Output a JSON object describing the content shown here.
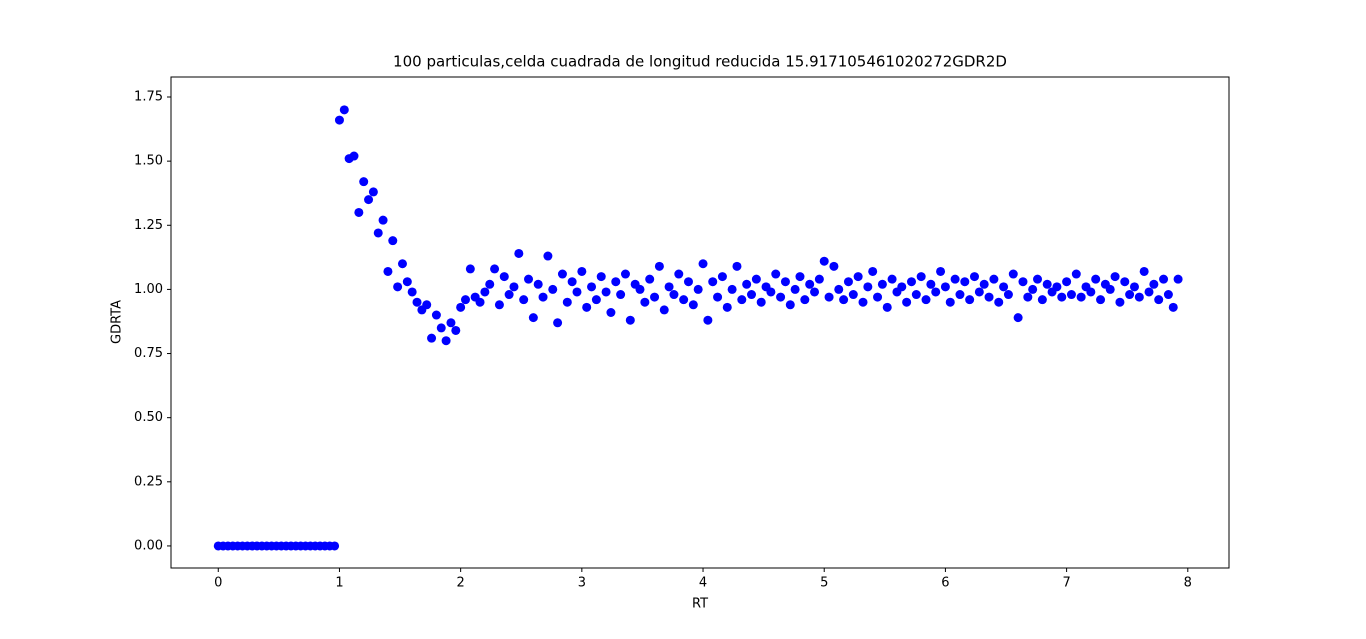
{
  "chart_data": {
    "type": "scatter",
    "title": "100 particulas,celda cuadrada de longitud reducida 15.917105461020272GDR2D",
    "xlabel": "RT",
    "ylabel": "GDRTA",
    "x": [
      0,
      0.04,
      0.08,
      0.12,
      0.16,
      0.2,
      0.24,
      0.28,
      0.32,
      0.36,
      0.4,
      0.44,
      0.48,
      0.52,
      0.56,
      0.6,
      0.64,
      0.68,
      0.72,
      0.76,
      0.8,
      0.84,
      0.88,
      0.92,
      0.96,
      1,
      1.04,
      1.08,
      1.12,
      1.16,
      1.2,
      1.24,
      1.28,
      1.32,
      1.36,
      1.4,
      1.44,
      1.48,
      1.52,
      1.56,
      1.6,
      1.64,
      1.68,
      1.72,
      1.76,
      1.8,
      1.84,
      1.88,
      1.92,
      1.96,
      2,
      2.04,
      2.08,
      2.12,
      2.16,
      2.2,
      2.24,
      2.28,
      2.32,
      2.36,
      2.4,
      2.44,
      2.48,
      2.52,
      2.56,
      2.6,
      2.64,
      2.68,
      2.72,
      2.76,
      2.8,
      2.84,
      2.88,
      2.92,
      2.96,
      3,
      3.04,
      3.08,
      3.12,
      3.16,
      3.2,
      3.24,
      3.28,
      3.32,
      3.36,
      3.4,
      3.44,
      3.48,
      3.52,
      3.56,
      3.6,
      3.64,
      3.68,
      3.72,
      3.76,
      3.8,
      3.84,
      3.88,
      3.92,
      3.96,
      4,
      4.04,
      4.08,
      4.12,
      4.16,
      4.2,
      4.24,
      4.28,
      4.32,
      4.36,
      4.4,
      4.44,
      4.48,
      4.52,
      4.56,
      4.6,
      4.64,
      4.68,
      4.72,
      4.76,
      4.8,
      4.84,
      4.88,
      4.92,
      4.96,
      5,
      5.04,
      5.08,
      5.12,
      5.16,
      5.2,
      5.24,
      5.28,
      5.32,
      5.36,
      5.4,
      5.44,
      5.48,
      5.52,
      5.56,
      5.6,
      5.64,
      5.68,
      5.72,
      5.76,
      5.8,
      5.84,
      5.88,
      5.92,
      5.96,
      6,
      6.04,
      6.08,
      6.12,
      6.16,
      6.2,
      6.24,
      6.28,
      6.32,
      6.36,
      6.4,
      6.44,
      6.48,
      6.52,
      6.56,
      6.6,
      6.64,
      6.68,
      6.72,
      6.76,
      6.8,
      6.84,
      6.88,
      6.92,
      6.96,
      7,
      7.04,
      7.08,
      7.12,
      7.16,
      7.2,
      7.24,
      7.28,
      7.32,
      7.36,
      7.4,
      7.44,
      7.48,
      7.52,
      7.56,
      7.6,
      7.64,
      7.68,
      7.72,
      7.76,
      7.8,
      7.84,
      7.88,
      7.92
    ],
    "values": [
      0,
      0,
      0,
      0,
      0,
      0,
      0,
      0,
      0,
      0,
      0,
      0,
      0,
      0,
      0,
      0,
      0,
      0,
      0,
      0,
      0,
      0,
      0,
      0,
      0,
      1.66,
      1.7,
      1.51,
      1.52,
      1.3,
      1.42,
      1.35,
      1.38,
      1.22,
      1.27,
      1.07,
      1.19,
      1.01,
      1.1,
      1.03,
      0.99,
      0.95,
      0.92,
      0.94,
      0.81,
      0.9,
      0.85,
      0.8,
      0.87,
      0.84,
      0.93,
      0.96,
      1.08,
      0.97,
      0.95,
      0.99,
      1.02,
      1.08,
      0.94,
      1.05,
      0.98,
      1.01,
      1.14,
      0.96,
      1.04,
      0.89,
      1.02,
      0.97,
      1.13,
      1.0,
      0.87,
      1.06,
      0.95,
      1.03,
      0.99,
      1.07,
      0.93,
      1.01,
      0.96,
      1.05,
      0.99,
      0.91,
      1.03,
      0.98,
      1.06,
      0.88,
      1.02,
      1.0,
      0.95,
      1.04,
      0.97,
      1.09,
      0.92,
      1.01,
      0.98,
      1.06,
      0.96,
      1.03,
      0.94,
      1.0,
      1.1,
      0.88,
      1.03,
      0.97,
      1.05,
      0.93,
      1.0,
      1.09,
      0.96,
      1.02,
      0.98,
      1.04,
      0.95,
      1.01,
      0.99,
      1.06,
      0.97,
      1.03,
      0.94,
      1.0,
      1.05,
      0.96,
      1.02,
      0.99,
      1.04,
      1.11,
      0.97,
      1.09,
      1.0,
      0.96,
      1.03,
      0.98,
      1.05,
      0.95,
      1.01,
      1.07,
      0.97,
      1.02,
      0.93,
      1.04,
      0.99,
      1.01,
      0.95,
      1.03,
      0.98,
      1.05,
      0.96,
      1.02,
      0.99,
      1.07,
      1.01,
      0.95,
      1.04,
      0.98,
      1.03,
      0.96,
      1.05,
      0.99,
      1.02,
      0.97,
      1.04,
      0.95,
      1.01,
      0.98,
      1.06,
      0.89,
      1.03,
      0.97,
      1.0,
      1.04,
      0.96,
      1.02,
      0.99,
      1.01,
      0.97,
      1.03,
      0.98,
      1.06,
      0.97,
      1.01,
      0.99,
      1.04,
      0.96,
      1.02,
      1.0,
      1.05,
      0.95,
      1.03,
      0.98,
      1.01,
      0.97,
      1.07,
      0.99,
      1.02,
      0.96,
      1.04,
      0.98,
      0.93,
      1.04
    ],
    "color": "#0000ff",
    "xlim": [
      -0.39,
      8.34
    ],
    "xticks": [
      0,
      1,
      2,
      3,
      4,
      5,
      6,
      7,
      8
    ],
    "ylim": [
      -0.086,
      1.828
    ],
    "yticks": [
      {
        "value": 0,
        "label": "0.00"
      },
      {
        "value": 0.25,
        "label": "0.25"
      },
      {
        "value": 0.5,
        "label": "0.50"
      },
      {
        "value": 0.75,
        "label": "0.75"
      },
      {
        "value": 1,
        "label": "1.00"
      },
      {
        "value": 1.25,
        "label": "1.25"
      },
      {
        "value": 1.5,
        "label": "1.50"
      },
      {
        "value": 1.75,
        "label": "1.75"
      }
    ],
    "grid": false
  }
}
